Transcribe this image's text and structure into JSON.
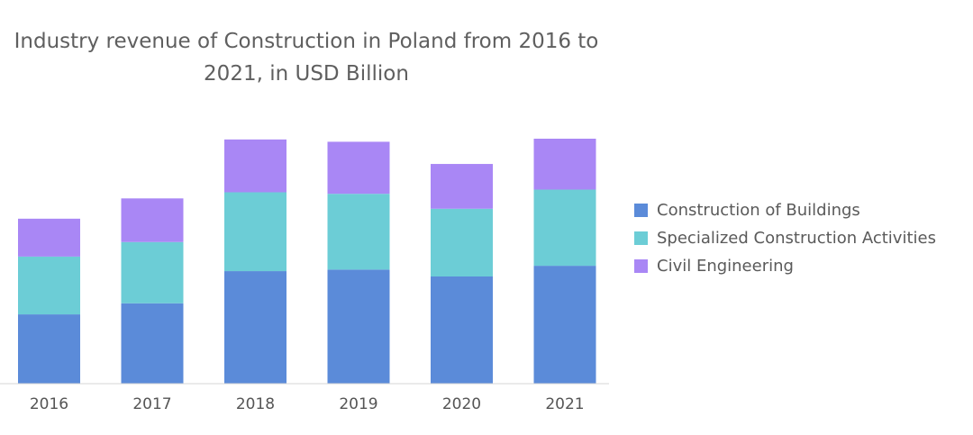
{
  "chart_data": {
    "type": "bar",
    "stacked": true,
    "title": "Industry revenue of Construction in Poland from 2016 to 2021, in USD Billion",
    "categories": [
      "2016",
      "2017",
      "2018",
      "2019",
      "2020",
      "2021"
    ],
    "series": [
      {
        "name": "Construction of Buildings",
        "color": "#5b8bd9",
        "values": [
          18.1,
          21.0,
          29.4,
          29.8,
          28.0,
          30.8
        ]
      },
      {
        "name": "Specialized Construction Activities",
        "color": "#6ccdd6",
        "values": [
          15.1,
          16.0,
          20.6,
          19.8,
          17.7,
          19.9
        ]
      },
      {
        "name": "Civil Engineering",
        "color": "#a987f5",
        "values": [
          9.9,
          11.4,
          13.8,
          13.6,
          11.7,
          13.3
        ]
      }
    ],
    "ylim": [
      0,
      64
    ],
    "grid": false,
    "y_axis_visible": false,
    "legend_position": "right"
  }
}
